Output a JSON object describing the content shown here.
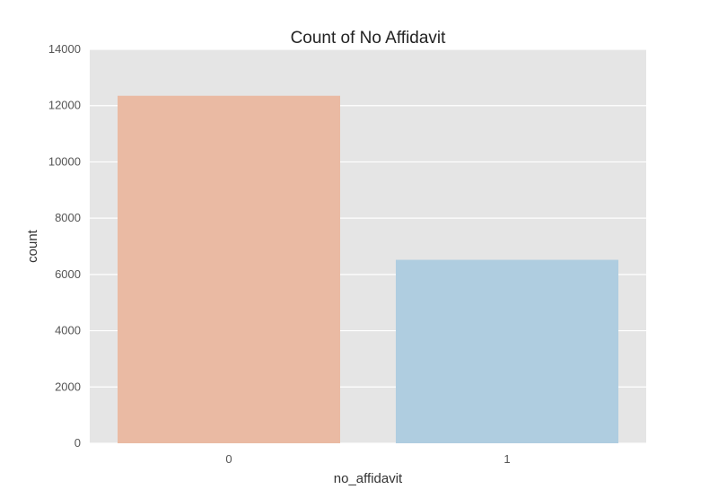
{
  "chart_data": {
    "type": "bar",
    "title": "Count of No Affidavit",
    "xlabel": "no_affidavit",
    "ylabel": "count",
    "categories": [
      "0",
      "1"
    ],
    "values": [
      12350,
      6520
    ],
    "colors": [
      "#eabaa3",
      "#afcde0"
    ],
    "ylim": [
      0,
      14000
    ],
    "yticks": [
      0,
      2000,
      4000,
      6000,
      8000,
      10000,
      12000,
      14000
    ],
    "ytick_labels": [
      "0",
      "2000",
      "4000",
      "6000",
      "8000",
      "10000",
      "12000",
      "14000"
    ],
    "grid": true,
    "background": "#e5e5e5",
    "grid_color": "#ffffff",
    "text_color": "#555555"
  }
}
